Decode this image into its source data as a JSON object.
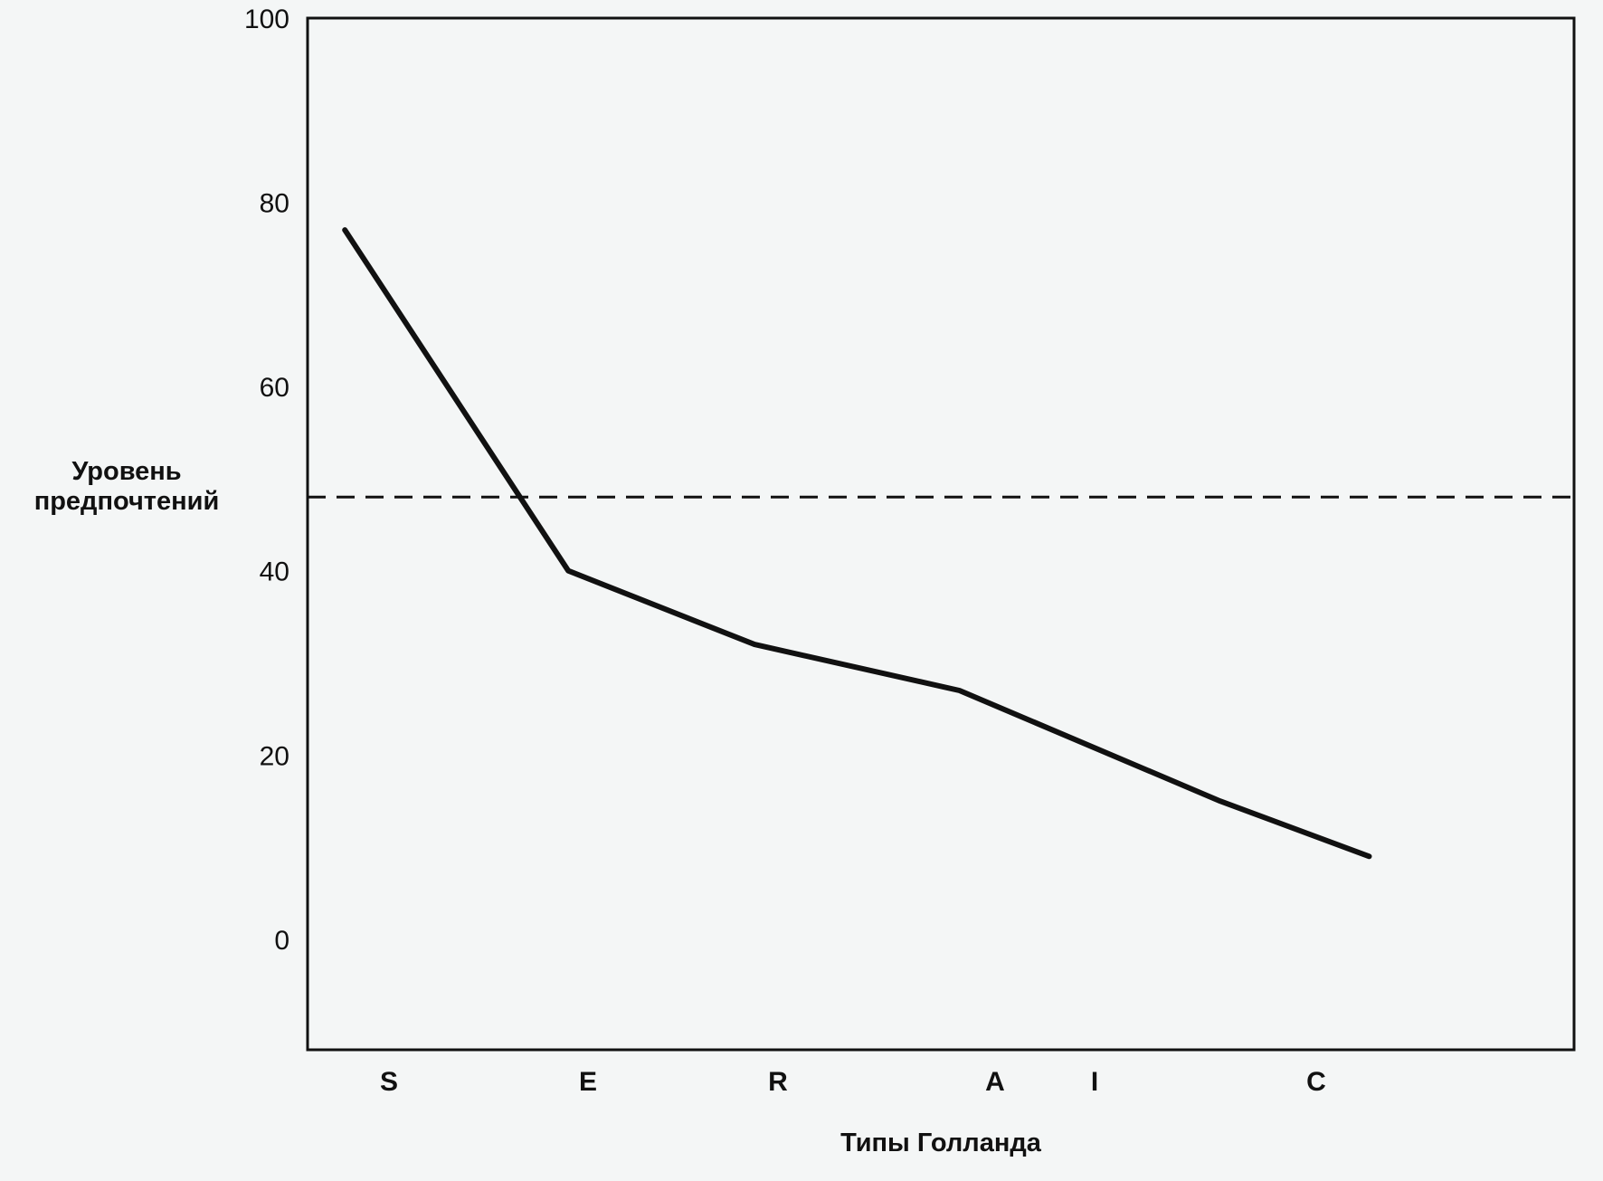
{
  "chart_data": {
    "type": "line",
    "title": "",
    "xlabel": "Типы Голланда",
    "ylabel_lines": [
      "Уровень",
      "предпочтений"
    ],
    "categories": [
      "S",
      "E",
      "R",
      "A",
      "I",
      "C"
    ],
    "series": [
      {
        "x": [
          0.5,
          1.7,
          2.7,
          3.8,
          5.2,
          6.0
        ],
        "y": [
          77,
          40,
          32,
          27,
          15,
          9
        ]
      }
    ],
    "reference_line": {
      "y": 48,
      "style": "dashed"
    },
    "yticks": [
      0,
      20,
      40,
      60,
      80,
      100
    ],
    "ylim": [
      -12,
      100
    ],
    "xlim": [
      0.3,
      7.1
    ],
    "grid": false,
    "colors": {
      "line": "#111111",
      "frame": "#111111",
      "background": "#f4f6f6"
    }
  }
}
